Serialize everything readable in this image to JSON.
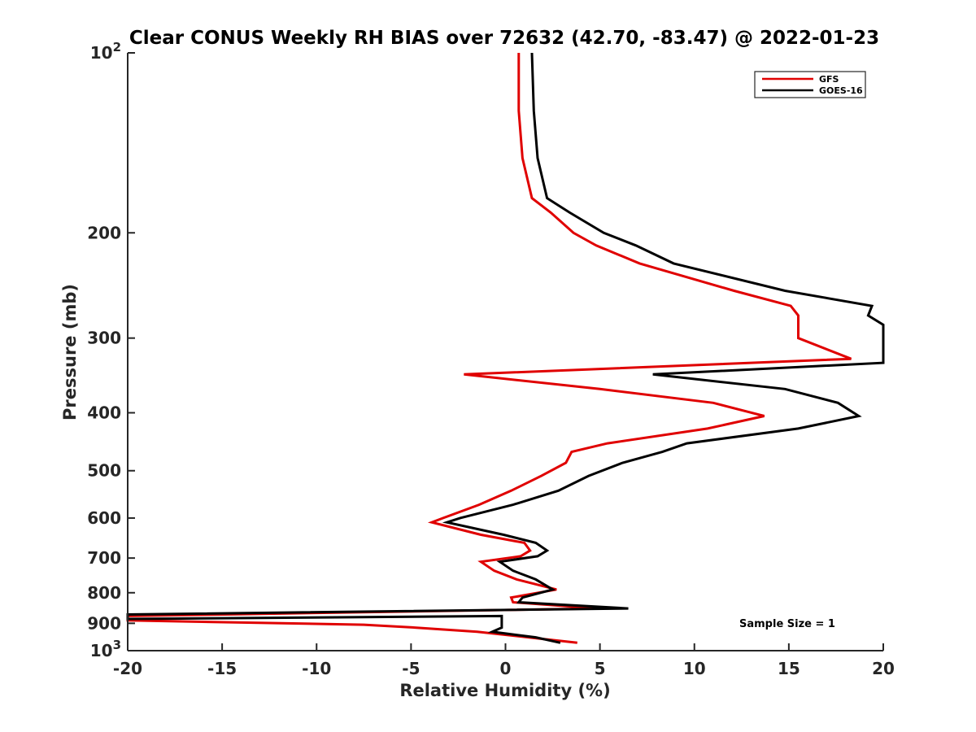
{
  "chart_data": {
    "type": "line",
    "title": "Clear CONUS Weekly RH BIAS over 72632 (42.70, -83.47) @ 2022-01-23",
    "xlabel": "Relative Humidity (%)",
    "ylabel": "Pressure (mb)",
    "xlim": [
      -20,
      20
    ],
    "ylim": [
      100,
      1000
    ],
    "y_scale": "log",
    "y_reversed": true,
    "grid": false,
    "legend_placement": "top-right",
    "x_ticks": [
      "-20",
      "-15",
      "-10",
      "-5",
      "0",
      "5",
      "10",
      "15",
      "20"
    ],
    "y_ticks": [
      {
        "value": 100,
        "base": "10",
        "exp": "2"
      },
      {
        "value": 200,
        "label": "200"
      },
      {
        "value": 300,
        "label": "300"
      },
      {
        "value": 400,
        "label": "400"
      },
      {
        "value": 500,
        "label": "500"
      },
      {
        "value": 600,
        "label": "600"
      },
      {
        "value": 700,
        "label": "700"
      },
      {
        "value": 800,
        "label": "800"
      },
      {
        "value": 900,
        "label": "900"
      },
      {
        "value": 1000,
        "base": "10",
        "exp": "3"
      }
    ],
    "series": [
      {
        "name": "GFS",
        "color": "#e00000",
        "points": [
          [
            0.7,
            100
          ],
          [
            0.7,
            125
          ],
          [
            0.9,
            150
          ],
          [
            1.4,
            175
          ],
          [
            2.4,
            185
          ],
          [
            3.6,
            200
          ],
          [
            4.8,
            210
          ],
          [
            7.1,
            225
          ],
          [
            12.1,
            250
          ],
          [
            15.1,
            265
          ],
          [
            15.5,
            275
          ],
          [
            15.5,
            300
          ],
          [
            18.3,
            325
          ],
          [
            -2.2,
            345
          ],
          [
            5.0,
            365
          ],
          [
            11.0,
            385
          ],
          [
            13.7,
            405
          ],
          [
            10.7,
            425
          ],
          [
            5.4,
            450
          ],
          [
            3.5,
            465
          ],
          [
            3.2,
            485
          ],
          [
            1.9,
            510
          ],
          [
            0.3,
            540
          ],
          [
            -1.4,
            570
          ],
          [
            -3.3,
            600
          ],
          [
            -3.9,
            610
          ],
          [
            -1.3,
            640
          ],
          [
            1.0,
            660
          ],
          [
            1.3,
            680
          ],
          [
            0.8,
            695
          ],
          [
            -1.3,
            710
          ],
          [
            -0.6,
            735
          ],
          [
            0.6,
            760
          ],
          [
            2.7,
            790
          ],
          [
            0.3,
            815
          ],
          [
            0.4,
            830
          ],
          [
            4.9,
            850
          ],
          [
            -20.0,
            875
          ],
          [
            -20.0,
            890
          ],
          [
            -7.5,
            905
          ],
          [
            -4.8,
            915
          ],
          [
            -1.5,
            930
          ],
          [
            1.2,
            950
          ],
          [
            3.8,
            970
          ]
        ]
      },
      {
        "name": "GOES-16",
        "color": "#000000",
        "points": [
          [
            1.4,
            100
          ],
          [
            1.5,
            125
          ],
          [
            1.7,
            150
          ],
          [
            2.2,
            175
          ],
          [
            3.4,
            185
          ],
          [
            5.2,
            200
          ],
          [
            6.9,
            210
          ],
          [
            8.9,
            225
          ],
          [
            14.8,
            250
          ],
          [
            19.4,
            265
          ],
          [
            19.2,
            275
          ],
          [
            20.0,
            285
          ],
          [
            20.0,
            330
          ],
          [
            7.8,
            345
          ],
          [
            14.8,
            365
          ],
          [
            17.6,
            385
          ],
          [
            18.7,
            405
          ],
          [
            15.5,
            425
          ],
          [
            9.6,
            450
          ],
          [
            8.3,
            465
          ],
          [
            6.2,
            485
          ],
          [
            4.4,
            510
          ],
          [
            2.8,
            540
          ],
          [
            0.4,
            570
          ],
          [
            -2.4,
            600
          ],
          [
            -3.1,
            610
          ],
          [
            -0.1,
            640
          ],
          [
            1.6,
            660
          ],
          [
            2.2,
            680
          ],
          [
            1.7,
            695
          ],
          [
            -0.3,
            710
          ],
          [
            0.4,
            735
          ],
          [
            1.6,
            760
          ],
          [
            2.5,
            790
          ],
          [
            0.9,
            815
          ],
          [
            0.7,
            830
          ],
          [
            6.5,
            850
          ],
          [
            -20.0,
            870
          ],
          [
            -20.0,
            885
          ],
          [
            -0.2,
            875
          ],
          [
            -0.2,
            905
          ],
          [
            -0.2,
            915
          ],
          [
            -0.7,
            930
          ],
          [
            1.6,
            950
          ],
          [
            2.9,
            970
          ]
        ]
      }
    ],
    "annotation": "Sample Size = 1"
  }
}
